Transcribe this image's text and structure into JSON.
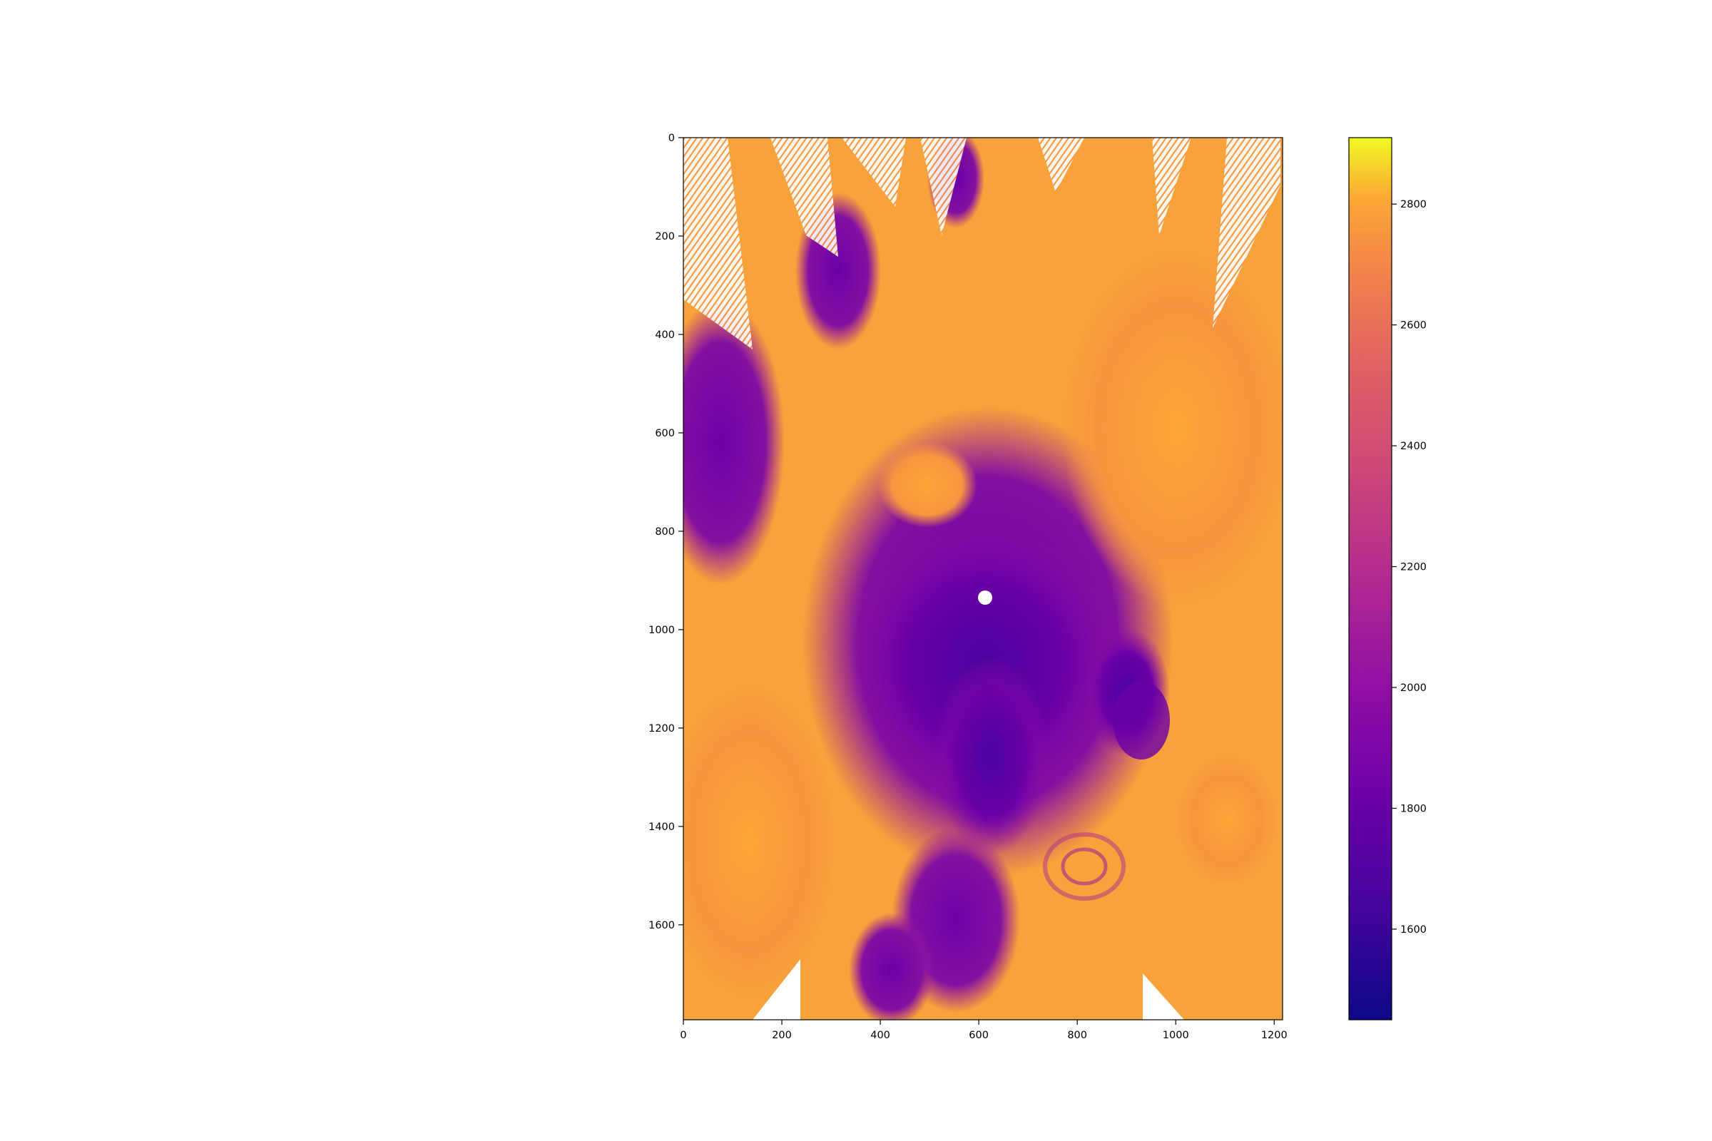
{
  "chart_data": {
    "type": "heatmap",
    "title": "",
    "xlabel": "",
    "ylabel": "",
    "image_shape": {
      "rows": 1793,
      "cols": 1217
    },
    "xlim": [
      0,
      1217
    ],
    "ylim": [
      1793,
      0
    ],
    "x_ticks": [
      0,
      200,
      400,
      600,
      800,
      1000,
      1200
    ],
    "y_ticks": [
      0,
      200,
      400,
      600,
      800,
      1000,
      1200,
      1400,
      1600
    ],
    "colormap": "plasma",
    "colorbar": {
      "range": [
        1450,
        2910
      ],
      "ticks": [
        1600,
        1800,
        2000,
        2200,
        2400,
        2600,
        2800
      ]
    },
    "colors": {
      "low": "#0d0887",
      "mid": "#cc4778",
      "high": "#f0f921",
      "no_data": "#ffffff"
    },
    "value_summary": {
      "dominant_land_values": "2600-2800",
      "ocean_and_cloud_values": "1700-2000",
      "no_data_regions": "white wedges along top, bottom and left edges; white pole disk near (615, 935)"
    },
    "grid": false
  }
}
